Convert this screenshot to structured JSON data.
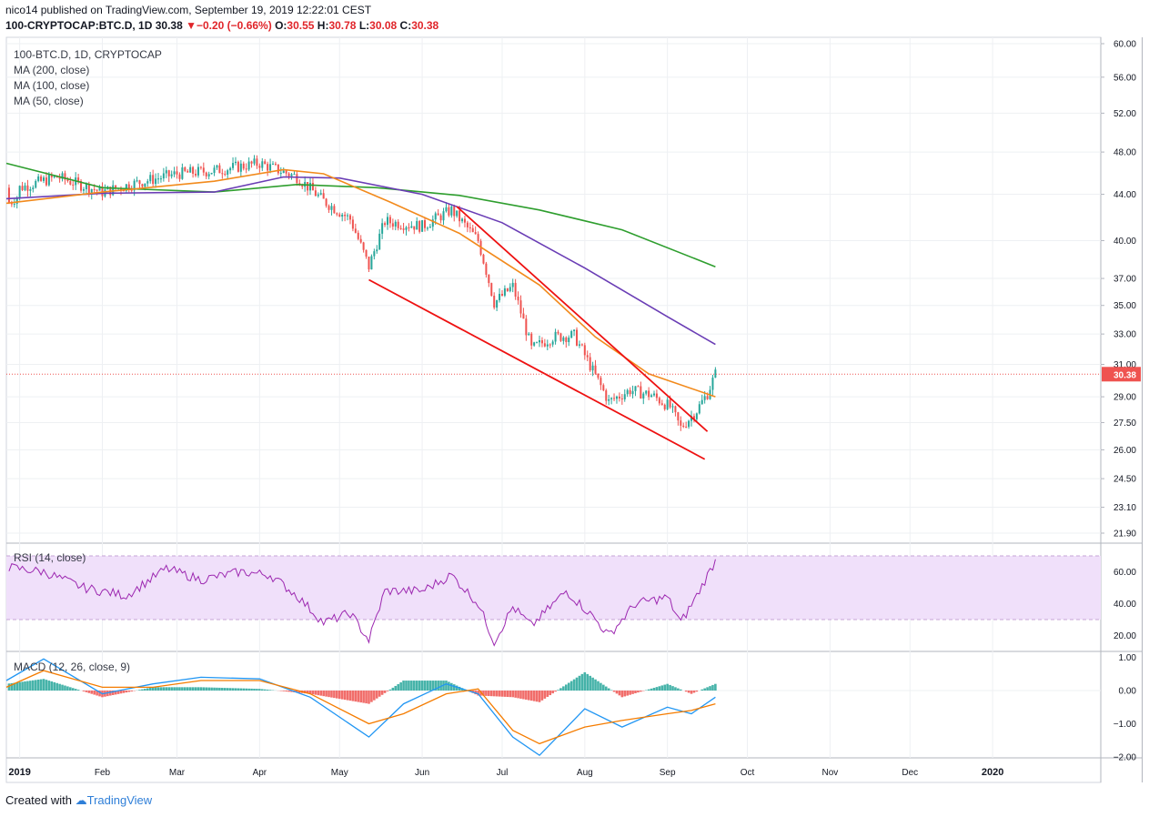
{
  "header": {
    "publisher_line": "nico14 published on TradingView.com, September 19, 2019 12:22:01 CEST",
    "symbol": "100-CRYPTOCAP:BTC.D, 1D",
    "last": "30.38",
    "change": "−0.20 (−0.66%)",
    "open_label": "O:",
    "open": "30.55",
    "high_label": "H:",
    "high": "30.78",
    "low_label": "L:",
    "low": "30.08",
    "close_label": "C:",
    "close": "30.38"
  },
  "legend": {
    "series": "100-BTC.D, 1D, CRYPTOCAP",
    "ma200": "MA (200, close)",
    "ma100": "MA (100, close)",
    "ma50": "MA (50, close)"
  },
  "price_axis": {
    "ticks": [
      "60.00",
      "56.00",
      "52.00",
      "48.00",
      "44.00",
      "40.00",
      "37.00",
      "35.00",
      "33.00",
      "31.00",
      "29.00",
      "27.50",
      "26.00",
      "24.50",
      "23.10",
      "21.90"
    ],
    "last_price_badge": "30.38"
  },
  "rsi": {
    "label": "RSI (14, close)",
    "ticks": [
      "60.00",
      "40.00",
      "20.00"
    ]
  },
  "macd": {
    "label": "MACD (12, 26, close, 9)",
    "ticks": [
      "1.00",
      "0.00",
      "−1.00",
      "−2.00"
    ]
  },
  "time_axis": {
    "labels": [
      "2019",
      "Feb",
      "Mar",
      "Apr",
      "May",
      "Jun",
      "Jul",
      "Aug",
      "Sep",
      "Oct",
      "Nov",
      "Dec",
      "2020"
    ]
  },
  "colors": {
    "up": "#26a69a",
    "down": "#ef5350",
    "ma200": "#2e9e2e",
    "ma100": "#6a3db5",
    "ma50": "#f28a1c",
    "trendline": "#ee1111",
    "rsi_line": "#9c27b0",
    "rsi_band": "#f0e0fa",
    "macd_line": "#2196f3",
    "signal_line": "#f57c00"
  },
  "footer": {
    "created_with": "Created with",
    "brand": "TradingView"
  },
  "chart_data": {
    "type": "candlestick",
    "title": "100-CRYPTOCAP:BTC.D, 1D",
    "x_range": [
      "2018-12-27",
      "2019-09-19"
    ],
    "ylim": [
      21.9,
      60.0
    ],
    "y_scale": "log",
    "price_series": [
      {
        "date": "2019-01-01",
        "close": 44.6
      },
      {
        "date": "2019-01-15",
        "close": 45.6
      },
      {
        "date": "2019-02-01",
        "close": 44.2
      },
      {
        "date": "2019-02-15",
        "close": 45.1
      },
      {
        "date": "2019-03-01",
        "close": 45.9
      },
      {
        "date": "2019-03-15",
        "close": 46.2
      },
      {
        "date": "2019-04-01",
        "close": 46.9
      },
      {
        "date": "2019-04-15",
        "close": 45.6
      },
      {
        "date": "2019-04-25",
        "close": 43.4
      },
      {
        "date": "2019-05-05",
        "close": 41.8
      },
      {
        "date": "2019-05-12",
        "close": 37.9
      },
      {
        "date": "2019-05-18",
        "close": 41.6
      },
      {
        "date": "2019-06-01",
        "close": 41.2
      },
      {
        "date": "2019-06-12",
        "close": 42.6
      },
      {
        "date": "2019-06-22",
        "close": 40.0
      },
      {
        "date": "2019-06-28",
        "close": 35.2
      },
      {
        "date": "2019-07-05",
        "close": 36.4
      },
      {
        "date": "2019-07-12",
        "close": 32.0
      },
      {
        "date": "2019-07-20",
        "close": 32.8
      },
      {
        "date": "2019-07-28",
        "close": 32.9
      },
      {
        "date": "2019-08-04",
        "close": 30.6
      },
      {
        "date": "2019-08-10",
        "close": 28.7
      },
      {
        "date": "2019-08-18",
        "close": 29.4
      },
      {
        "date": "2019-08-26",
        "close": 29.1
      },
      {
        "date": "2019-09-02",
        "close": 28.4
      },
      {
        "date": "2019-09-06",
        "close": 27.2
      },
      {
        "date": "2019-09-12",
        "close": 28.2
      },
      {
        "date": "2019-09-16",
        "close": 29.2
      },
      {
        "date": "2019-09-19",
        "close": 30.38
      }
    ],
    "ma200": [
      {
        "date": "2018-12-27",
        "value": 46.9
      },
      {
        "date": "2019-02-01",
        "value": 44.6
      },
      {
        "date": "2019-03-15",
        "value": 44.2
      },
      {
        "date": "2019-04-15",
        "value": 44.9
      },
      {
        "date": "2019-05-15",
        "value": 44.6
      },
      {
        "date": "2019-06-15",
        "value": 43.9
      },
      {
        "date": "2019-07-15",
        "value": 42.6
      },
      {
        "date": "2019-08-15",
        "value": 40.9
      },
      {
        "date": "2019-09-19",
        "value": 37.9
      }
    ],
    "ma100": [
      {
        "date": "2018-12-27",
        "value": 43.6
      },
      {
        "date": "2019-02-01",
        "value": 44.1
      },
      {
        "date": "2019-03-15",
        "value": 44.2
      },
      {
        "date": "2019-04-10",
        "value": 45.6
      },
      {
        "date": "2019-05-01",
        "value": 45.5
      },
      {
        "date": "2019-06-01",
        "value": 44.0
      },
      {
        "date": "2019-07-01",
        "value": 41.5
      },
      {
        "date": "2019-08-01",
        "value": 37.8
      },
      {
        "date": "2019-09-01",
        "value": 34.2
      },
      {
        "date": "2019-09-19",
        "value": 32.3
      }
    ],
    "ma50": [
      {
        "date": "2018-12-27",
        "value": 43.2
      },
      {
        "date": "2019-02-01",
        "value": 44.2
      },
      {
        "date": "2019-03-15",
        "value": 45.2
      },
      {
        "date": "2019-04-10",
        "value": 46.3
      },
      {
        "date": "2019-04-25",
        "value": 45.9
      },
      {
        "date": "2019-05-20",
        "value": 43.3
      },
      {
        "date": "2019-06-15",
        "value": 40.6
      },
      {
        "date": "2019-07-15",
        "value": 36.5
      },
      {
        "date": "2019-08-05",
        "value": 32.8
      },
      {
        "date": "2019-08-25",
        "value": 30.4
      },
      {
        "date": "2019-09-19",
        "value": 29.0
      }
    ],
    "trendlines": [
      {
        "from": {
          "date": "2019-05-12",
          "value": 36.9
        },
        "to": {
          "date": "2019-09-15",
          "value": 25.5
        }
      },
      {
        "from": {
          "date": "2019-06-14",
          "value": 42.9
        },
        "to": {
          "date": "2019-09-16",
          "value": 27.0
        }
      }
    ],
    "rsi_series": [
      {
        "date": "2018-12-27",
        "value": 63
      },
      {
        "date": "2019-01-10",
        "value": 60
      },
      {
        "date": "2019-01-25",
        "value": 50
      },
      {
        "date": "2019-02-10",
        "value": 45
      },
      {
        "date": "2019-02-25",
        "value": 62
      },
      {
        "date": "2019-03-10",
        "value": 55
      },
      {
        "date": "2019-03-25",
        "value": 60
      },
      {
        "date": "2019-04-05",
        "value": 58
      },
      {
        "date": "2019-04-15",
        "value": 45
      },
      {
        "date": "2019-04-25",
        "value": 28
      },
      {
        "date": "2019-05-05",
        "value": 34
      },
      {
        "date": "2019-05-12",
        "value": 17
      },
      {
        "date": "2019-05-18",
        "value": 48
      },
      {
        "date": "2019-06-01",
        "value": 48
      },
      {
        "date": "2019-06-12",
        "value": 58
      },
      {
        "date": "2019-06-22",
        "value": 40
      },
      {
        "date": "2019-06-28",
        "value": 16
      },
      {
        "date": "2019-07-05",
        "value": 38
      },
      {
        "date": "2019-07-12",
        "value": 26
      },
      {
        "date": "2019-07-25",
        "value": 48
      },
      {
        "date": "2019-08-04",
        "value": 32
      },
      {
        "date": "2019-08-10",
        "value": 20
      },
      {
        "date": "2019-08-20",
        "value": 40
      },
      {
        "date": "2019-09-01",
        "value": 44
      },
      {
        "date": "2019-09-06",
        "value": 28
      },
      {
        "date": "2019-09-12",
        "value": 45
      },
      {
        "date": "2019-09-19",
        "value": 67
      }
    ],
    "macd_series": [
      {
        "date": "2018-12-27",
        "value": 0.3
      },
      {
        "date": "2019-01-10",
        "value": 0.95
      },
      {
        "date": "2019-02-01",
        "value": -0.1
      },
      {
        "date": "2019-02-20",
        "value": 0.2
      },
      {
        "date": "2019-03-10",
        "value": 0.4
      },
      {
        "date": "2019-04-01",
        "value": 0.35
      },
      {
        "date": "2019-04-20",
        "value": -0.2
      },
      {
        "date": "2019-05-12",
        "value": -1.4
      },
      {
        "date": "2019-05-25",
        "value": -0.4
      },
      {
        "date": "2019-06-10",
        "value": 0.2
      },
      {
        "date": "2019-06-22",
        "value": -0.1
      },
      {
        "date": "2019-07-05",
        "value": -1.4
      },
      {
        "date": "2019-07-15",
        "value": -1.95
      },
      {
        "date": "2019-08-01",
        "value": -0.55
      },
      {
        "date": "2019-08-15",
        "value": -1.1
      },
      {
        "date": "2019-09-01",
        "value": -0.5
      },
      {
        "date": "2019-09-10",
        "value": -0.7
      },
      {
        "date": "2019-09-19",
        "value": -0.2
      }
    ],
    "signal_series": [
      {
        "date": "2018-12-27",
        "value": 0.1
      },
      {
        "date": "2019-01-10",
        "value": 0.6
      },
      {
        "date": "2019-02-01",
        "value": 0.1
      },
      {
        "date": "2019-02-20",
        "value": 0.1
      },
      {
        "date": "2019-03-10",
        "value": 0.3
      },
      {
        "date": "2019-04-01",
        "value": 0.3
      },
      {
        "date": "2019-04-20",
        "value": -0.1
      },
      {
        "date": "2019-05-12",
        "value": -1.0
      },
      {
        "date": "2019-05-25",
        "value": -0.7
      },
      {
        "date": "2019-06-10",
        "value": -0.1
      },
      {
        "date": "2019-06-22",
        "value": 0.05
      },
      {
        "date": "2019-07-05",
        "value": -1.2
      },
      {
        "date": "2019-07-15",
        "value": -1.6
      },
      {
        "date": "2019-08-01",
        "value": -1.1
      },
      {
        "date": "2019-08-15",
        "value": -0.9
      },
      {
        "date": "2019-09-01",
        "value": -0.7
      },
      {
        "date": "2019-09-10",
        "value": -0.6
      },
      {
        "date": "2019-09-19",
        "value": -0.4
      }
    ]
  }
}
